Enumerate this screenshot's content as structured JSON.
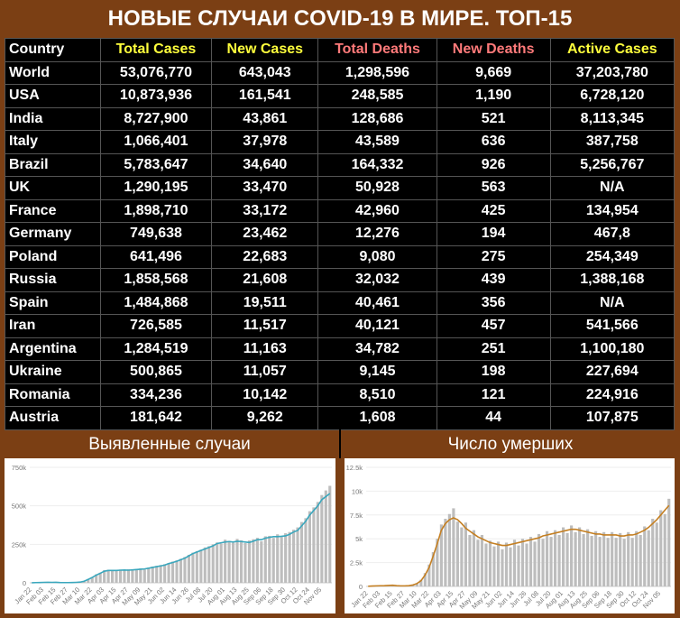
{
  "title": "НОВЫЕ СЛУЧАИ COVID-19 В МИРЕ. ТОП-15",
  "table": {
    "headers": [
      "Country",
      "Total Cases",
      "New Cases",
      "Total Deaths",
      "New Deaths",
      "Active Cases"
    ],
    "rows": [
      [
        "World",
        "53,076,770",
        "643,043",
        "1,298,596",
        "9,669",
        "37,203,780"
      ],
      [
        "USA",
        "10,873,936",
        "161,541",
        "248,585",
        "1,190",
        "6,728,120"
      ],
      [
        "India",
        "8,727,900",
        "43,861",
        "128,686",
        "521",
        "8,113,345"
      ],
      [
        "Italy",
        "1,066,401",
        "37,978",
        "43,589",
        "636",
        "387,758"
      ],
      [
        "Brazil",
        "5,783,647",
        "34,640",
        "164,332",
        "926",
        "5,256,767"
      ],
      [
        "UK",
        "1,290,195",
        "33,470",
        "50,928",
        "563",
        "N/A"
      ],
      [
        "France",
        "1,898,710",
        "33,172",
        "42,960",
        "425",
        "134,954"
      ],
      [
        "Germany",
        "749,638",
        "23,462",
        "12,276",
        "194",
        "467,8"
      ],
      [
        "Poland",
        "641,496",
        "22,683",
        "9,080",
        "275",
        "254,349"
      ],
      [
        "Russia",
        "1,858,568",
        "21,608",
        "32,032",
        "439",
        "1,388,168"
      ],
      [
        "Spain",
        "1,484,868",
        "19,511",
        "40,461",
        "356",
        "N/A"
      ],
      [
        "Iran",
        "726,585",
        "11,517",
        "40,121",
        "457",
        "541,566"
      ],
      [
        "Argentina",
        "1,284,519",
        "11,163",
        "34,782",
        "251",
        "1,100,180"
      ],
      [
        "Ukraine",
        "500,865",
        "11,057",
        "9,145",
        "198",
        "227,694"
      ],
      [
        "Romania",
        "334,236",
        "10,142",
        "8,510",
        "121",
        "224,916"
      ],
      [
        "Austria",
        "181,642",
        "9,262",
        "1,608",
        "44",
        "107,875"
      ]
    ]
  },
  "chart_data": [
    {
      "type": "bar",
      "title": "Выявленные случаи",
      "grid": true,
      "categories": [
        "Jan 22",
        null,
        null,
        "Feb 03",
        null,
        null,
        "Feb 15",
        null,
        null,
        "Feb 27",
        null,
        null,
        "Mar 10",
        null,
        null,
        "Mar 22",
        null,
        null,
        "Apr 03",
        null,
        null,
        "Apr 15",
        null,
        null,
        "Apr 27",
        null,
        null,
        "May 09",
        null,
        null,
        "May 21",
        null,
        null,
        "Jun 02",
        null,
        null,
        "Jun 14",
        null,
        null,
        "Jun 26",
        null,
        null,
        "Jul 08",
        null,
        null,
        "Jul 20",
        null,
        null,
        "Aug 01",
        null,
        null,
        "Aug 13",
        null,
        null,
        "Aug 25",
        null,
        null,
        "Sep 06",
        null,
        null,
        "Sep 18",
        null,
        null,
        "Sep 30",
        null,
        null,
        "Oct 12",
        null,
        null,
        "Oct 24",
        null,
        null,
        "Nov 05",
        null,
        null
      ],
      "ylim": [
        0,
        750000
      ],
      "yticks": [
        0,
        {
          "value": 250000,
          "label": "250k"
        },
        {
          "value": 500000,
          "label": "500k"
        },
        {
          "value": 750000,
          "label": "750k"
        }
      ],
      "series": [
        {
          "type": "bar",
          "color": "#bdbdbd",
          "values": [
            700,
            1800,
            2100,
            3200,
            3800,
            2900,
            6000,
            1800,
            1400,
            1600,
            2300,
            3500,
            5000,
            12000,
            25000,
            38000,
            55000,
            66000,
            82000,
            85000,
            78000,
            84000,
            86000,
            80000,
            88000,
            82000,
            90000,
            94000,
            86000,
            99000,
            106000,
            110000,
            115000,
            121000,
            128000,
            138000,
            146000,
            156000,
            168000,
            182000,
            196000,
            206000,
            215000,
            230000,
            238000,
            250000,
            262000,
            255000,
            280000,
            272000,
            260000,
            285000,
            276000,
            258000,
            275000,
            283000,
            292000,
            270000,
            302000,
            305000,
            292000,
            315000,
            298000,
            322000,
            330000,
            345000,
            360000,
            395000,
            420000,
            465000,
            490000,
            525000,
            570000,
            600000,
            630000
          ]
        },
        {
          "type": "line",
          "color": "#3aa7bd",
          "values": [
            600,
            1500,
            2000,
            3000,
            3200,
            3000,
            3500,
            2000,
            1500,
            1500,
            2000,
            3000,
            4500,
            10000,
            22000,
            35000,
            50000,
            62000,
            75000,
            80000,
            80000,
            80000,
            82000,
            83000,
            82000,
            84000,
            86000,
            88000,
            90000,
            95000,
            100000,
            105000,
            110000,
            115000,
            125000,
            132000,
            140000,
            150000,
            160000,
            175000,
            190000,
            200000,
            210000,
            220000,
            230000,
            240000,
            255000,
            260000,
            265000,
            268000,
            265000,
            270000,
            268000,
            265000,
            262000,
            270000,
            280000,
            280000,
            290000,
            295000,
            300000,
            300000,
            302000,
            305000,
            315000,
            330000,
            340000,
            370000,
            400000,
            440000,
            470000,
            500000,
            540000,
            560000,
            580000
          ]
        }
      ]
    },
    {
      "type": "bar",
      "title": "Число умерших",
      "grid": true,
      "categories": [
        "Jan 22",
        null,
        null,
        "Feb 03",
        null,
        null,
        "Feb 15",
        null,
        null,
        "Feb 27",
        null,
        null,
        "Mar 10",
        null,
        null,
        "Mar 22",
        null,
        null,
        "Apr 03",
        null,
        null,
        "Apr 15",
        null,
        null,
        "Apr 27",
        null,
        null,
        "May 09",
        null,
        null,
        "May 21",
        null,
        null,
        "Jun 02",
        null,
        null,
        "Jun 14",
        null,
        null,
        "Jun 26",
        null,
        null,
        "Jul 08",
        null,
        null,
        "Jul 20",
        null,
        null,
        "Aug 01",
        null,
        null,
        "Aug 13",
        null,
        null,
        "Aug 25",
        null,
        null,
        "Sep 06",
        null,
        null,
        "Sep 18",
        null,
        null,
        "Sep 30",
        null,
        null,
        "Oct 12",
        null,
        null,
        "Oct 24",
        null,
        null,
        "Nov 05",
        null,
        null
      ],
      "ylim": [
        0,
        12500
      ],
      "yticks": [
        0,
        {
          "value": 2500,
          "label": "2.5k"
        },
        {
          "value": 5000,
          "label": "5k"
        },
        {
          "value": 7500,
          "label": "7.5k"
        },
        {
          "value": 10000,
          "label": "10k"
        },
        {
          "value": 12500,
          "label": "12.5k"
        }
      ],
      "series": [
        {
          "type": "bar",
          "color": "#bdbdbd",
          "values": [
            25,
            45,
            65,
            75,
            90,
            110,
            150,
            70,
            55,
            65,
            90,
            170,
            350,
            700,
            1400,
            2300,
            3600,
            5000,
            6500,
            7100,
            7600,
            8200,
            6800,
            6200,
            6700,
            5400,
            5900,
            4900,
            5400,
            4500,
            4800,
            4200,
            4700,
            3900,
            4600,
            4100,
            4900,
            4300,
            5000,
            4500,
            5200,
            4700,
            5500,
            5000,
            5800,
            5200,
            5900,
            5400,
            6200,
            5600,
            6400,
            5700,
            6200,
            5500,
            6000,
            5300,
            5800,
            5200,
            5700,
            5100,
            5700,
            5100,
            5600,
            5000,
            5700,
            5100,
            5800,
            5400,
            6300,
            5900,
            7100,
            6700,
            8000,
            7600,
            9200
          ]
        },
        {
          "type": "line",
          "color": "#c47f22",
          "values": [
            20,
            40,
            60,
            70,
            80,
            100,
            120,
            80,
            60,
            60,
            80,
            150,
            300,
            600,
            1200,
            2000,
            3200,
            4500,
            5900,
            6600,
            7000,
            7200,
            7000,
            6600,
            6100,
            5800,
            5500,
            5200,
            5000,
            4800,
            4600,
            4500,
            4400,
            4300,
            4300,
            4400,
            4500,
            4600,
            4700,
            4800,
            4900,
            5000,
            5100,
            5300,
            5400,
            5500,
            5600,
            5700,
            5800,
            5900,
            6000,
            6000,
            5900,
            5800,
            5700,
            5600,
            5500,
            5500,
            5400,
            5400,
            5400,
            5400,
            5300,
            5300,
            5400,
            5400,
            5500,
            5700,
            5900,
            6200,
            6600,
            7000,
            7500,
            8000,
            8500
          ]
        }
      ]
    }
  ]
}
